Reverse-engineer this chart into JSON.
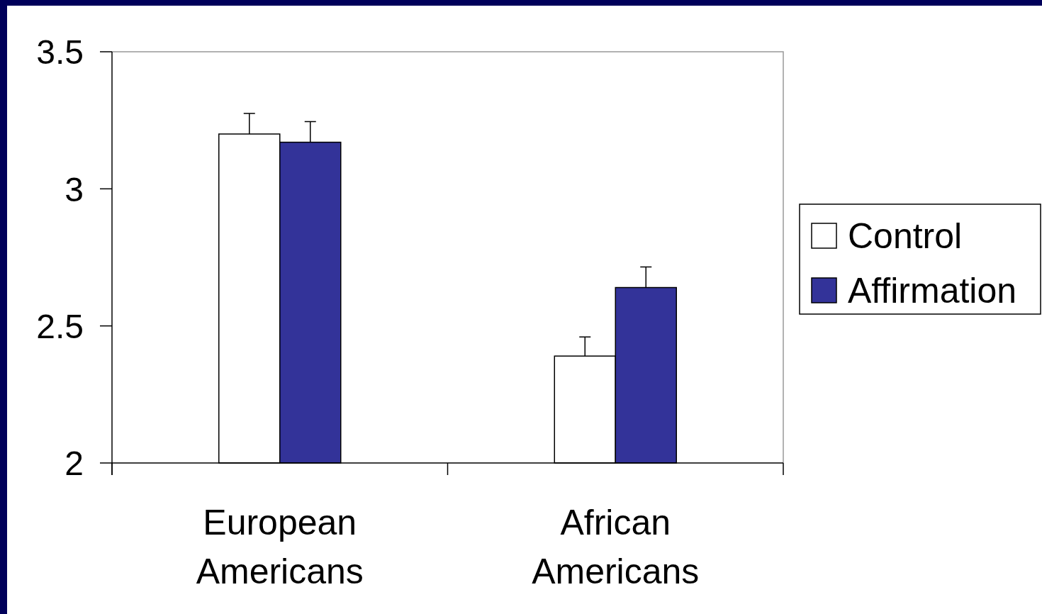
{
  "chart_data": {
    "type": "bar",
    "categories": [
      "European\nAmericans",
      "African\nAmericans"
    ],
    "series": [
      {
        "name": "Control",
        "color": "#ffffff",
        "values": [
          3.2,
          2.39
        ],
        "errors": [
          [
            3.2,
            3.275
          ],
          [
            2.39,
            2.46
          ]
        ]
      },
      {
        "name": "Affirmation",
        "color": "#333399",
        "values": [
          3.17,
          2.64
        ],
        "errors": [
          [
            3.17,
            3.245
          ],
          [
            2.64,
            2.715
          ]
        ]
      }
    ],
    "ylim": [
      2,
      3.5
    ],
    "yticks": [
      2,
      2.5,
      3,
      3.5
    ],
    "legend": "right",
    "grid": false
  }
}
